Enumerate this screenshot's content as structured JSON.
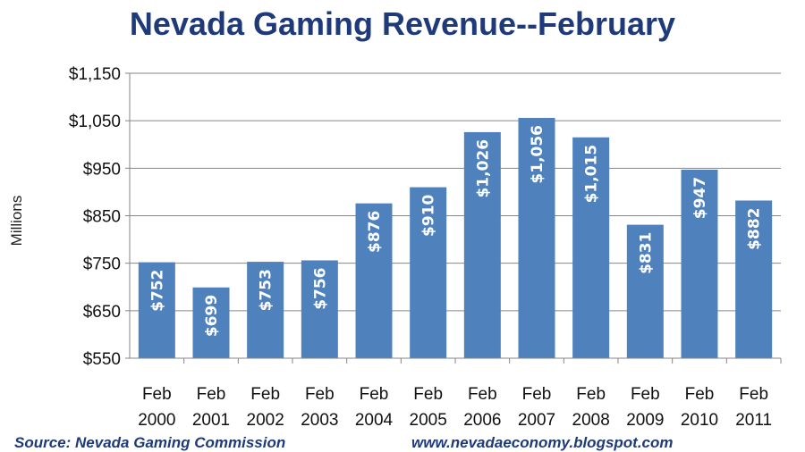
{
  "chart_data": {
    "type": "bar",
    "title": "Nevada Gaming Revenue--February",
    "ylabel": "Millions",
    "xlabel": "",
    "ylim": [
      550,
      1150
    ],
    "yticks": [
      550,
      650,
      750,
      850,
      950,
      1050,
      1150
    ],
    "ytick_labels": [
      "$550",
      "$650",
      "$750",
      "$850",
      "$950",
      "$1,050",
      "$1,150"
    ],
    "grid": true,
    "categories": [
      [
        "Feb",
        "2000"
      ],
      [
        "Feb",
        "2001"
      ],
      [
        "Feb",
        "2002"
      ],
      [
        "Feb",
        "2003"
      ],
      [
        "Feb",
        "2004"
      ],
      [
        "Feb",
        "2005"
      ],
      [
        "Feb",
        "2006"
      ],
      [
        "Feb",
        "2007"
      ],
      [
        "Feb",
        "2008"
      ],
      [
        "Feb",
        "2009"
      ],
      [
        "Feb",
        "2010"
      ],
      [
        "Feb",
        "2011"
      ]
    ],
    "values": [
      752,
      699,
      753,
      756,
      876,
      910,
      1026,
      1056,
      1015,
      831,
      947,
      882
    ],
    "data_labels": [
      "$752",
      "$699",
      "$753",
      "$756",
      "$876",
      "$910",
      "$1,026",
      "$1,056",
      "$1,015",
      "$831",
      "$947",
      "$882"
    ],
    "bar_color": "#4f81bd",
    "grid_color": "#868686"
  },
  "footer": {
    "source": "Source: Nevada Gaming Commission",
    "url": "www.nevadaeconomy.blogspot.com"
  }
}
